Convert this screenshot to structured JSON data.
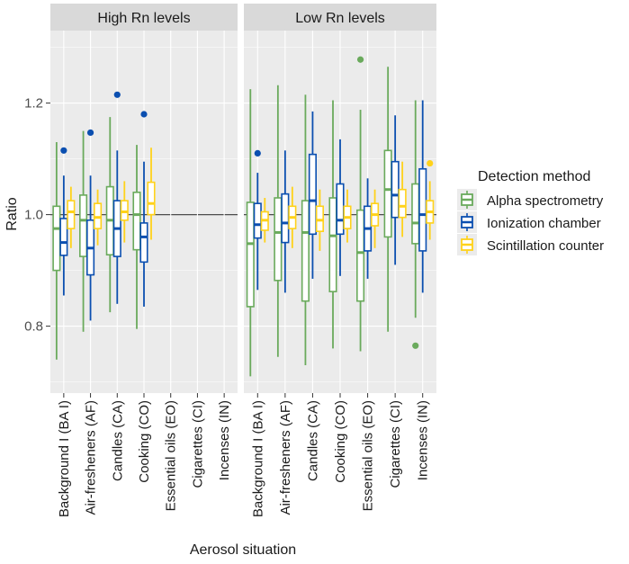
{
  "chart_data": {
    "type": "boxplot",
    "ylabel": "Ratio",
    "xlabel": "Aerosol situation",
    "ylim": [
      0.68,
      1.33
    ],
    "yticks": [
      0.8,
      1.0,
      1.2
    ],
    "ytick_labels": [
      "0.8",
      "1.0",
      "1.2"
    ],
    "reference_line": 1.0,
    "categories": [
      "Background I (BA I)",
      "Air-fresheners (AF)",
      "Candles (CA)",
      "Cooking (CO)",
      "Essential oils (EO)",
      "Cigarettes (CI)",
      "Incenses (IN)"
    ],
    "legend": {
      "title": "Detection method",
      "position": "right",
      "entries": [
        {
          "name": "Alpha spectrometry",
          "color": "#6aaa5c"
        },
        {
          "name": "Ionization chamber",
          "color": "#0b4fb0"
        },
        {
          "name": "Scintillation counter",
          "color": "#ffd21a"
        }
      ]
    },
    "panels": [
      {
        "title": "High Rn levels",
        "groups": [
          {
            "category": "Background I (BA I)",
            "boxes": [
              {
                "series": "Alpha spectrometry",
                "min": 0.74,
                "q1": 0.9,
                "median": 0.975,
                "q3": 1.015,
                "max": 1.13,
                "outliers": []
              },
              {
                "series": "Ionization chamber",
                "min": 0.855,
                "q1": 0.927,
                "median": 0.95,
                "q3": 0.993,
                "max": 1.07,
                "outliers": [
                  1.115
                ]
              },
              {
                "series": "Scintillation counter",
                "min": 0.94,
                "q1": 0.975,
                "median": 1.005,
                "q3": 1.025,
                "max": 1.05,
                "outliers": []
              }
            ]
          },
          {
            "category": "Air-fresheners (AF)",
            "boxes": [
              {
                "series": "Alpha spectrometry",
                "min": 0.79,
                "q1": 0.925,
                "median": 0.99,
                "q3": 1.035,
                "max": 1.15,
                "outliers": []
              },
              {
                "series": "Ionization chamber",
                "min": 0.81,
                "q1": 0.892,
                "median": 0.94,
                "q3": 0.99,
                "max": 1.07,
                "outliers": [
                  1.147
                ]
              },
              {
                "series": "Scintillation counter",
                "min": 0.945,
                "q1": 0.975,
                "median": 0.995,
                "q3": 1.02,
                "max": 1.045,
                "outliers": []
              }
            ]
          },
          {
            "category": "Candles (CA)",
            "boxes": [
              {
                "series": "Alpha spectrometry",
                "min": 0.825,
                "q1": 0.928,
                "median": 0.99,
                "q3": 1.05,
                "max": 1.175,
                "outliers": []
              },
              {
                "series": "Ionization chamber",
                "min": 0.84,
                "q1": 0.925,
                "median": 0.975,
                "q3": 1.025,
                "max": 1.115,
                "outliers": [
                  1.215
                ]
              },
              {
                "series": "Scintillation counter",
                "min": 0.95,
                "q1": 0.99,
                "median": 1.005,
                "q3": 1.025,
                "max": 1.06,
                "outliers": []
              }
            ]
          },
          {
            "category": "Cooking (CO)",
            "boxes": [
              {
                "series": "Alpha spectrometry",
                "min": 0.795,
                "q1": 0.937,
                "median": 1.0,
                "q3": 1.04,
                "max": 1.125,
                "outliers": []
              },
              {
                "series": "Ionization chamber",
                "min": 0.835,
                "q1": 0.915,
                "median": 0.96,
                "q3": 0.985,
                "max": 1.095,
                "outliers": [
                  1.18
                ]
              },
              {
                "series": "Scintillation counter",
                "min": 0.955,
                "q1": 1.0,
                "median": 1.02,
                "q3": 1.058,
                "max": 1.12,
                "outliers": []
              }
            ]
          }
        ]
      },
      {
        "title": "Low Rn levels",
        "groups": [
          {
            "category": "Background I (BA I)",
            "boxes": [
              {
                "series": "Alpha spectrometry",
                "min": 0.71,
                "q1": 0.835,
                "median": 0.948,
                "q3": 1.022,
                "max": 1.225,
                "outliers": []
              },
              {
                "series": "Ionization chamber",
                "min": 0.865,
                "q1": 0.958,
                "median": 0.982,
                "q3": 1.02,
                "max": 1.075,
                "outliers": [
                  1.11
                ]
              },
              {
                "series": "Scintillation counter",
                "min": 0.95,
                "q1": 0.972,
                "median": 0.99,
                "q3": 1.005,
                "max": 1.03,
                "outliers": []
              }
            ]
          },
          {
            "category": "Air-fresheners (AF)",
            "boxes": [
              {
                "series": "Alpha spectrometry",
                "min": 0.745,
                "q1": 0.882,
                "median": 0.968,
                "q3": 1.03,
                "max": 1.232,
                "outliers": []
              },
              {
                "series": "Ionization chamber",
                "min": 0.86,
                "q1": 0.95,
                "median": 0.985,
                "q3": 1.037,
                "max": 1.115,
                "outliers": []
              },
              {
                "series": "Scintillation counter",
                "min": 0.94,
                "q1": 0.975,
                "median": 0.995,
                "q3": 1.015,
                "max": 1.05,
                "outliers": []
              }
            ]
          },
          {
            "category": "Candles (CA)",
            "boxes": [
              {
                "series": "Alpha spectrometry",
                "min": 0.73,
                "q1": 0.845,
                "median": 0.968,
                "q3": 1.025,
                "max": 1.215,
                "outliers": []
              },
              {
                "series": "Ionization chamber",
                "min": 0.885,
                "q1": 0.965,
                "median": 1.025,
                "q3": 1.108,
                "max": 1.185,
                "outliers": []
              },
              {
                "series": "Scintillation counter",
                "min": 0.935,
                "q1": 0.97,
                "median": 0.99,
                "q3": 1.015,
                "max": 1.045,
                "outliers": []
              }
            ]
          },
          {
            "category": "Cooking (CO)",
            "boxes": [
              {
                "series": "Alpha spectrometry",
                "min": 0.76,
                "q1": 0.862,
                "median": 0.962,
                "q3": 1.03,
                "max": 1.205,
                "outliers": []
              },
              {
                "series": "Ionization chamber",
                "min": 0.89,
                "q1": 0.965,
                "median": 0.99,
                "q3": 1.055,
                "max": 1.135,
                "outliers": []
              },
              {
                "series": "Scintillation counter",
                "min": 0.95,
                "q1": 0.975,
                "median": 0.995,
                "q3": 1.015,
                "max": 1.045,
                "outliers": []
              }
            ]
          },
          {
            "category": "Essential oils (EO)",
            "boxes": [
              {
                "series": "Alpha spectrometry",
                "min": 0.755,
                "q1": 0.845,
                "median": 0.932,
                "q3": 1.008,
                "max": 1.188,
                "outliers": [
                  1.278
                ]
              },
              {
                "series": "Ionization chamber",
                "min": 0.885,
                "q1": 0.935,
                "median": 0.975,
                "q3": 1.015,
                "max": 1.065,
                "outliers": []
              },
              {
                "series": "Scintillation counter",
                "min": 0.94,
                "q1": 0.98,
                "median": 1.0,
                "q3": 1.02,
                "max": 1.045,
                "outliers": []
              }
            ]
          },
          {
            "category": "Cigarettes (CI)",
            "boxes": [
              {
                "series": "Alpha spectrometry",
                "min": 0.79,
                "q1": 0.96,
                "median": 1.045,
                "q3": 1.115,
                "max": 1.265,
                "outliers": []
              },
              {
                "series": "Ionization chamber",
                "min": 0.91,
                "q1": 0.995,
                "median": 1.035,
                "q3": 1.095,
                "max": 1.178,
                "outliers": []
              },
              {
                "series": "Scintillation counter",
                "min": 0.96,
                "q1": 0.995,
                "median": 1.015,
                "q3": 1.045,
                "max": 1.095,
                "outliers": []
              }
            ]
          },
          {
            "category": "Incenses (IN)",
            "boxes": [
              {
                "series": "Alpha spectrometry",
                "min": 0.815,
                "q1": 0.948,
                "median": 0.985,
                "q3": 1.055,
                "max": 1.205,
                "outliers": [
                  0.765
                ]
              },
              {
                "series": "Ionization chamber",
                "min": 0.86,
                "q1": 0.935,
                "median": 1.0,
                "q3": 1.082,
                "max": 1.205,
                "outliers": []
              },
              {
                "series": "Scintillation counter",
                "min": 0.955,
                "q1": 0.985,
                "median": 1.005,
                "q3": 1.025,
                "max": 1.06,
                "outliers": [
                  1.092
                ]
              }
            ]
          }
        ]
      }
    ]
  }
}
